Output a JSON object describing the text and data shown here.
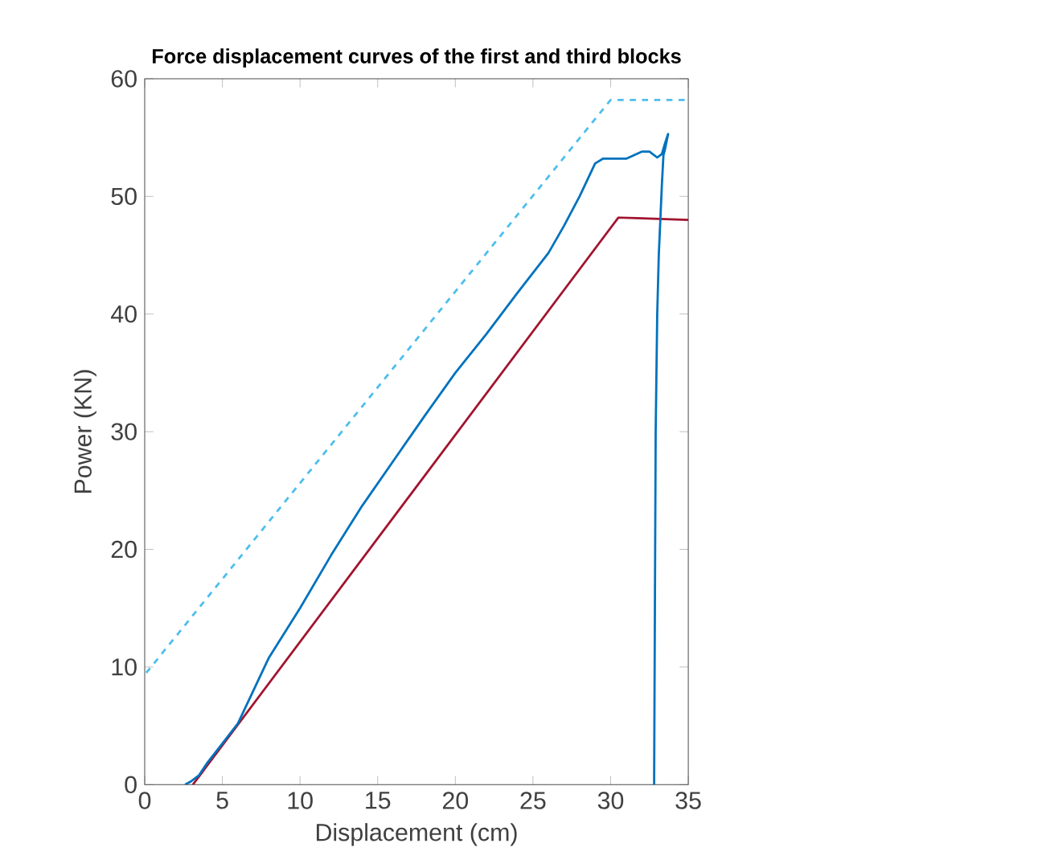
{
  "chart_data": {
    "type": "line",
    "title": "Force displacement curves of the first and third blocks",
    "xlabel": "Displacement (cm)",
    "ylabel": "Power (KN)",
    "xlim": [
      0,
      35
    ],
    "ylim": [
      0,
      60
    ],
    "xticks": [
      0,
      5,
      10,
      15,
      20,
      25,
      30,
      35
    ],
    "yticks": [
      0,
      10,
      20,
      30,
      40,
      50,
      60
    ],
    "grid": false,
    "marker": "none",
    "series": [
      {
        "color": "#4dbeee",
        "line_style": "dashed",
        "x": [
          0.1,
          30,
          34.8
        ],
        "values": [
          9.5,
          58.2,
          58.2
        ]
      },
      {
        "color": "#a2142f",
        "line_style": "solid",
        "x": [
          3.1,
          30.5,
          35
        ],
        "values": [
          0,
          48.2,
          48
        ]
      },
      {
        "color": "#0072bd",
        "line_style": "solid",
        "x": [
          2.6,
          3,
          3.5,
          4,
          5,
          6,
          7,
          8,
          10,
          12,
          14,
          16,
          18,
          20,
          22,
          24,
          26,
          27,
          28,
          29,
          29.5,
          31,
          32,
          32.5,
          33,
          33.3,
          33.5,
          33.7,
          33.5,
          33.4,
          33.3,
          33.2,
          33.1,
          33,
          32.9,
          32.85,
          32.8
        ],
        "values": [
          0,
          0.3,
          0.8,
          1.8,
          3.5,
          5.2,
          8,
          10.8,
          15,
          19.5,
          23.7,
          27.5,
          31.3,
          35,
          38.3,
          41.8,
          45.2,
          47.5,
          50,
          52.8,
          53.2,
          53.2,
          53.8,
          53.8,
          53.3,
          53.6,
          54.5,
          55.3,
          54,
          53.5,
          51,
          48,
          45,
          40,
          30,
          15,
          0
        ]
      }
    ]
  }
}
